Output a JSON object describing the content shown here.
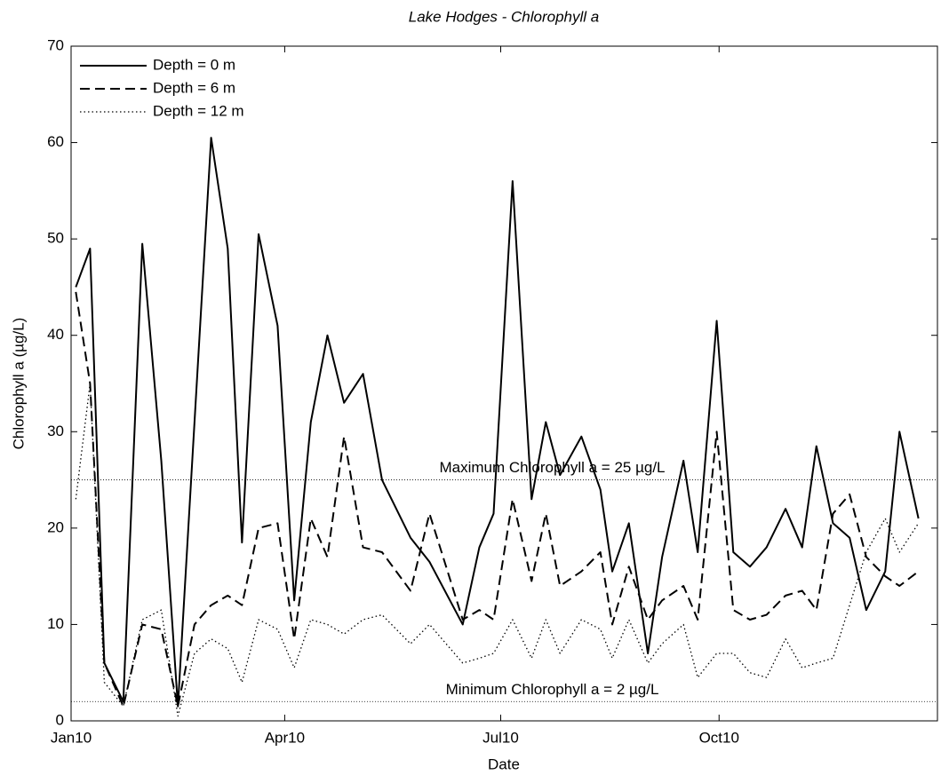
{
  "chart_data": {
    "type": "line",
    "title": "Lake Hodges - Chlorophyll a",
    "xlabel": "Date",
    "ylabel": "Chlorophyll a (µg/L)",
    "xlim": [
      0,
      365
    ],
    "xticks": [
      {
        "value": 0,
        "label": "Jan10"
      },
      {
        "value": 90,
        "label": "Apr10"
      },
      {
        "value": 181,
        "label": "Jul10"
      },
      {
        "value": 273,
        "label": "Oct10"
      }
    ],
    "ylim": [
      0,
      70
    ],
    "yticks": [
      0,
      10,
      20,
      30,
      40,
      50,
      60,
      70
    ],
    "grid": false,
    "legend": "upper left",
    "x": [
      2,
      8,
      14,
      22,
      30,
      38,
      45,
      52,
      59,
      66,
      72,
      79,
      87,
      94,
      101,
      108,
      115,
      123,
      131,
      143,
      151,
      165,
      172,
      178,
      186,
      194,
      200,
      206,
      215,
      223,
      228,
      235,
      243,
      249,
      258,
      264,
      272,
      279,
      286,
      293,
      301,
      308,
      314,
      321,
      328,
      335,
      343,
      349,
      357
    ],
    "series": [
      {
        "name": "Depth = 0 m",
        "color": "#000000",
        "style": "solid",
        "values": [
          45,
          49,
          6,
          2,
          49.5,
          27,
          1.5,
          31,
          60.5,
          49,
          18.5,
          50.5,
          41,
          12.5,
          31,
          40,
          33,
          36,
          25,
          19,
          16.5,
          10,
          18,
          21.5,
          56,
          23,
          31,
          25.5,
          29.5,
          24,
          15.5,
          20.5,
          7,
          17,
          27,
          17.5,
          41.5,
          17.5,
          16,
          18,
          22,
          18,
          28.5,
          20.5,
          19,
          11.5,
          15.5,
          30,
          21
        ]
      },
      {
        "name": "Depth = 6 m",
        "color": "#000000",
        "style": "dashed",
        "values": [
          44.5,
          35,
          6,
          1.5,
          10,
          9.5,
          1.5,
          10,
          12,
          13,
          12,
          20,
          20.5,
          8.5,
          21,
          17,
          29.5,
          18,
          17.5,
          13.5,
          21.5,
          10.5,
          11.5,
          10.5,
          23,
          14.5,
          21.5,
          14,
          15.5,
          17.5,
          10,
          16,
          10.5,
          12.5,
          14,
          10.5,
          30,
          11.5,
          10.5,
          11,
          13,
          13.5,
          11.5,
          21.5,
          23.5,
          17,
          15,
          14,
          15.5
        ]
      },
      {
        "name": "Depth = 12 m",
        "color": "#000000",
        "style": "dotted",
        "values": [
          23,
          35,
          4,
          1.5,
          10.5,
          11.5,
          0.5,
          7,
          8.5,
          7.5,
          4,
          10.5,
          9.5,
          5.5,
          10.5,
          10,
          9,
          10.5,
          11,
          8,
          10,
          6,
          6.5,
          7,
          10.5,
          6.5,
          10.5,
          7,
          10.5,
          9.5,
          6.5,
          10.5,
          6,
          8,
          10,
          4.5,
          7,
          7,
          5,
          4.5,
          8.5,
          5.5,
          6,
          6.5,
          12,
          17.5,
          21,
          17.5,
          20.5
        ]
      }
    ],
    "reference_lines": [
      {
        "value": 25,
        "label": "Maximum Chlorophyll a = 25 µg/L"
      },
      {
        "value": 2,
        "label": "Minimum Chlorophyll a = 2 µg/L"
      }
    ]
  }
}
